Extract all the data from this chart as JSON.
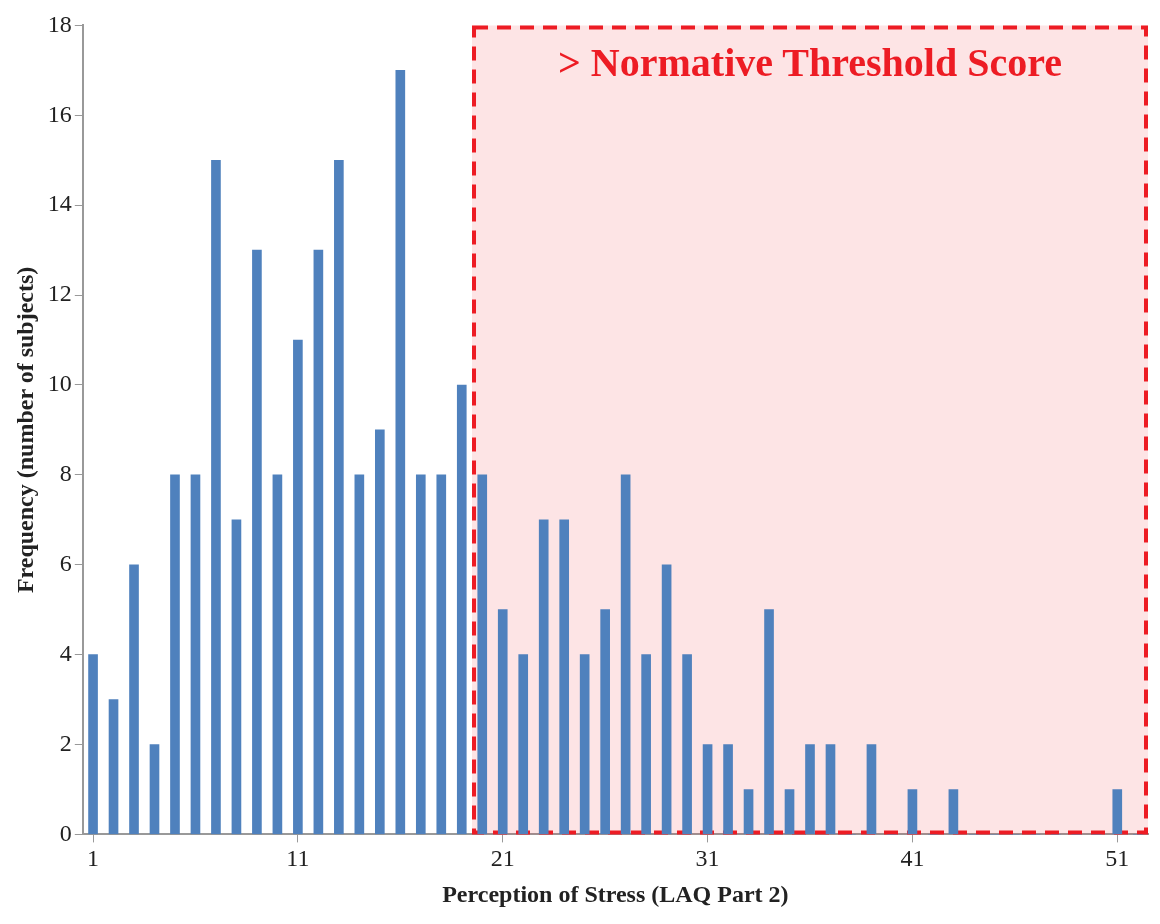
{
  "chart_data": {
    "type": "bar",
    "xlabel": "Perception of Stress (LAQ Part 2)",
    "ylabel": "Frequency (number of subjects)",
    "x": [
      1,
      2,
      3,
      4,
      5,
      6,
      7,
      8,
      9,
      10,
      11,
      12,
      13,
      14,
      15,
      16,
      17,
      18,
      19,
      20,
      21,
      22,
      23,
      24,
      25,
      26,
      27,
      28,
      29,
      30,
      31,
      32,
      33,
      34,
      35,
      36,
      37,
      38,
      39,
      40,
      41,
      42,
      43,
      44,
      45,
      46,
      47,
      48,
      49,
      50,
      51,
      52
    ],
    "values": [
      4,
      3,
      6,
      2,
      8,
      8,
      15,
      7,
      13,
      8,
      11,
      13,
      15,
      8,
      9,
      17,
      8,
      8,
      10,
      8,
      5,
      4,
      7,
      7,
      4,
      5,
      8,
      4,
      6,
      4,
      2,
      2,
      1,
      5,
      1,
      2,
      2,
      0,
      2,
      0,
      1,
      0,
      1,
      0,
      0,
      0,
      0,
      0,
      0,
      0,
      1,
      0
    ],
    "color": "#4f81bd",
    "xlim": [
      0.5,
      52.5
    ],
    "xticks": [
      1,
      11,
      21,
      31,
      41,
      51
    ],
    "ylim": [
      0,
      18
    ],
    "yticks": [
      0,
      2,
      4,
      6,
      8,
      10,
      12,
      14,
      16,
      18
    ],
    "bands": [
      {
        "axis": "x",
        "from": 19.5,
        "to": 52.5,
        "label": "> Normative Threshold Score",
        "color": "#ed1c24"
      }
    ],
    "grid": false,
    "legend": false
  }
}
